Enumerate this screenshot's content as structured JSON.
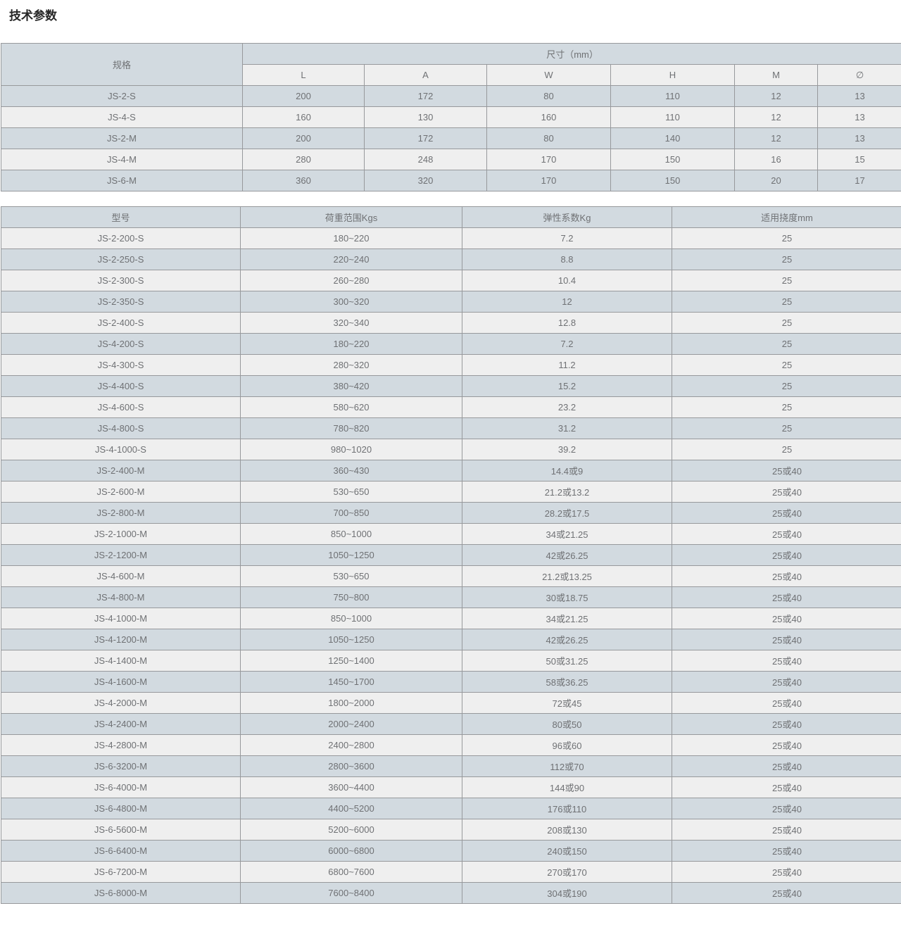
{
  "page": {
    "title": "技术参数"
  },
  "colors": {
    "header_blue": "#d2dae0",
    "row_gray": "#efefef",
    "row_blue": "#d2dae0",
    "border": "#97999c",
    "text": "#6f7174",
    "title": "#262626"
  },
  "dimension_table": {
    "corner_header": "规格",
    "group_header": "尺寸（mm）",
    "columns": [
      "L",
      "A",
      "W",
      "H",
      "M",
      "∅"
    ],
    "rows": [
      {
        "spec": "JS-2-S",
        "values": [
          "200",
          "172",
          "80",
          "110",
          "12",
          "13"
        ]
      },
      {
        "spec": "JS-4-S",
        "values": [
          "160",
          "130",
          "160",
          "110",
          "12",
          "13"
        ]
      },
      {
        "spec": "JS-2-M",
        "values": [
          "200",
          "172",
          "80",
          "140",
          "12",
          "13"
        ]
      },
      {
        "spec": "JS-4-M",
        "values": [
          "280",
          "248",
          "170",
          "150",
          "16",
          "15"
        ]
      },
      {
        "spec": "JS-6-M",
        "values": [
          "360",
          "320",
          "170",
          "150",
          "20",
          "17"
        ]
      }
    ]
  },
  "model_table": {
    "columns": [
      "型号",
      "荷重范围Kgs",
      "弹性系数Kg",
      "适用挠度mm"
    ],
    "rows": [
      [
        "JS-2-200-S",
        "180~220",
        "7.2",
        "25"
      ],
      [
        "JS-2-250-S",
        "220~240",
        "8.8",
        "25"
      ],
      [
        "JS-2-300-S",
        "260~280",
        "10.4",
        "25"
      ],
      [
        "JS-2-350-S",
        "300~320",
        "12",
        "25"
      ],
      [
        "JS-2-400-S",
        "320~340",
        "12.8",
        "25"
      ],
      [
        "JS-4-200-S",
        "180~220",
        "7.2",
        "25"
      ],
      [
        "JS-4-300-S",
        "280~320",
        "11.2",
        "25"
      ],
      [
        "JS-4-400-S",
        "380~420",
        "15.2",
        "25"
      ],
      [
        "JS-4-600-S",
        "580~620",
        "23.2",
        "25"
      ],
      [
        "JS-4-800-S",
        "780~820",
        "31.2",
        "25"
      ],
      [
        "JS-4-1000-S",
        "980~1020",
        "39.2",
        "25"
      ],
      [
        "JS-2-400-M",
        "360~430",
        "14.4或9",
        "25或40"
      ],
      [
        "JS-2-600-M",
        "530~650",
        "21.2或13.2",
        "25或40"
      ],
      [
        "JS-2-800-M",
        "700~850",
        "28.2或17.5",
        "25或40"
      ],
      [
        "JS-2-1000-M",
        "850~1000",
        "34或21.25",
        "25或40"
      ],
      [
        "JS-2-1200-M",
        "1050~1250",
        "42或26.25",
        "25或40"
      ],
      [
        "JS-4-600-M",
        "530~650",
        "21.2或13.25",
        "25或40"
      ],
      [
        "JS-4-800-M",
        "750~800",
        "30或18.75",
        "25或40"
      ],
      [
        "JS-4-1000-M",
        "850~1000",
        "34或21.25",
        "25或40"
      ],
      [
        "JS-4-1200-M",
        "1050~1250",
        "42或26.25",
        "25或40"
      ],
      [
        "JS-4-1400-M",
        "1250~1400",
        "50或31.25",
        "25或40"
      ],
      [
        "JS-4-1600-M",
        "1450~1700",
        "58或36.25",
        "25或40"
      ],
      [
        "JS-4-2000-M",
        "1800~2000",
        "72或45",
        "25或40"
      ],
      [
        "JS-4-2400-M",
        "2000~2400",
        "80或50",
        "25或40"
      ],
      [
        "JS-4-2800-M",
        "2400~2800",
        "96或60",
        "25或40"
      ],
      [
        "JS-6-3200-M",
        "2800~3600",
        "112或70",
        "25或40"
      ],
      [
        "JS-6-4000-M",
        "3600~4400",
        "144或90",
        "25或40"
      ],
      [
        "JS-6-4800-M",
        "4400~5200",
        "176或110",
        "25或40"
      ],
      [
        "JS-6-5600-M",
        "5200~6000",
        "208或130",
        "25或40"
      ],
      [
        "JS-6-6400-M",
        "6000~6800",
        "240或150",
        "25或40"
      ],
      [
        "JS-6-7200-M",
        "6800~7600",
        "270或170",
        "25或40"
      ],
      [
        "JS-6-8000-M",
        "7600~8400",
        "304或190",
        "25或40"
      ]
    ]
  }
}
